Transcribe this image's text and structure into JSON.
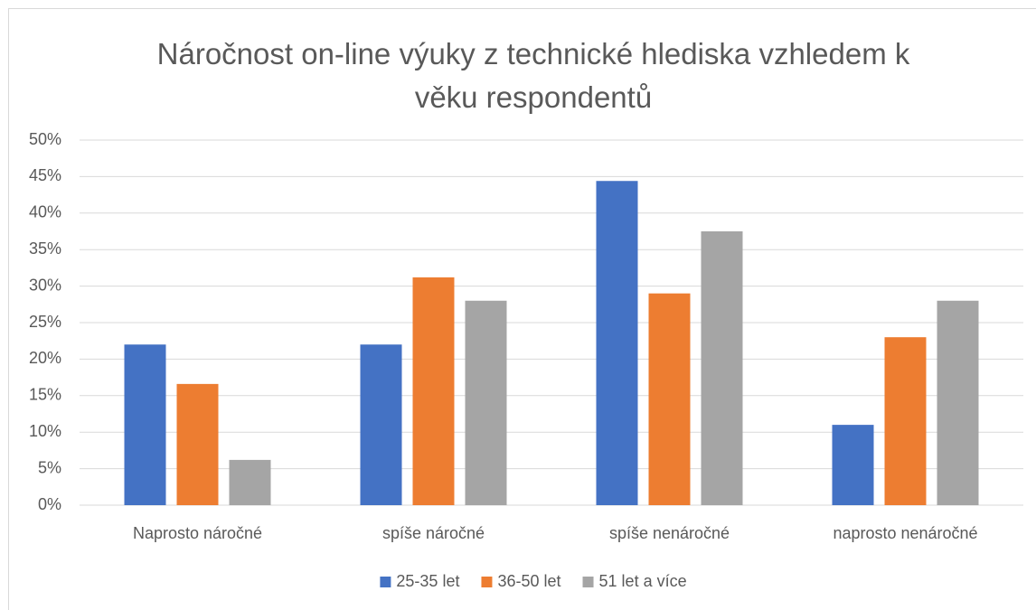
{
  "chart_data": {
    "type": "bar",
    "title": "Náročnost on-line výuky z technické hlediska vzhledem k věku respondentů",
    "categories": [
      "Naprosto náročné",
      "spíše náročné",
      "spíše nenáročné",
      "naprosto nenáročné"
    ],
    "series": [
      {
        "name": "25-35 let",
        "color": "#4472c4",
        "values": [
          22.0,
          22.0,
          44.4,
          11.0
        ]
      },
      {
        "name": "36-50 let",
        "color": "#ed7d31",
        "values": [
          16.6,
          31.2,
          29.0,
          23.0
        ]
      },
      {
        "name": "51 let a více",
        "color": "#a5a5a5",
        "values": [
          6.2,
          28.0,
          37.5,
          28.0
        ]
      }
    ],
    "ylim": [
      0,
      50
    ],
    "yticks": [
      {
        "value": 0,
        "label": "0%"
      },
      {
        "value": 5,
        "label": "5%"
      },
      {
        "value": 10,
        "label": "10%"
      },
      {
        "value": 15,
        "label": "15%"
      },
      {
        "value": 20,
        "label": "20%"
      },
      {
        "value": 25,
        "label": "25%"
      },
      {
        "value": 30,
        "label": "30%"
      },
      {
        "value": 35,
        "label": "35%"
      },
      {
        "value": 40,
        "label": "40%"
      },
      {
        "value": 45,
        "label": "45%"
      },
      {
        "value": 50,
        "label": "50%"
      }
    ],
    "grid": true,
    "legend": "bottom"
  }
}
